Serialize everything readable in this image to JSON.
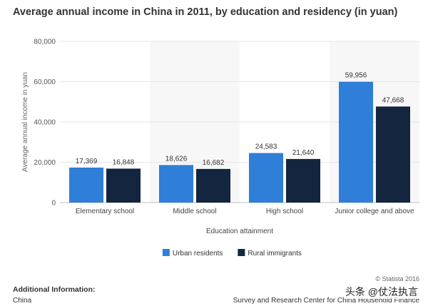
{
  "chart_data": {
    "type": "bar",
    "title": "Average annual income in China in 2011, by education and residency (in yuan)",
    "xlabel": "Education attainment",
    "ylabel": "Average annual income in yuan",
    "ylim": [
      0,
      80000
    ],
    "yticks": [
      0,
      20000,
      40000,
      60000,
      80000
    ],
    "ytick_labels": [
      "0",
      "20,000",
      "40,000",
      "60,000",
      "80,000"
    ],
    "categories": [
      "Elementary school",
      "Middle school",
      "High school",
      "Junior college and above"
    ],
    "series": [
      {
        "name": "Urban residents",
        "color": "#2f7ed8",
        "values": [
          17369,
          18626,
          24583,
          59956
        ],
        "labels": [
          "17,369",
          "18,626",
          "24,583",
          "59,956"
        ]
      },
      {
        "name": "Rural immigrants",
        "color": "#13253f",
        "values": [
          16848,
          16682,
          21640,
          47668
        ],
        "labels": [
          "16,848",
          "16,682",
          "21,640",
          "47,668"
        ]
      }
    ],
    "legend": "bottom-center",
    "grid": true
  },
  "footer": {
    "copyright": "© Statista 2016",
    "additional_info_title": "Additional Information:",
    "region": "China",
    "source": "Survey and Research Center for China Household Finance",
    "watermark": "头条 @仗法执言"
  }
}
